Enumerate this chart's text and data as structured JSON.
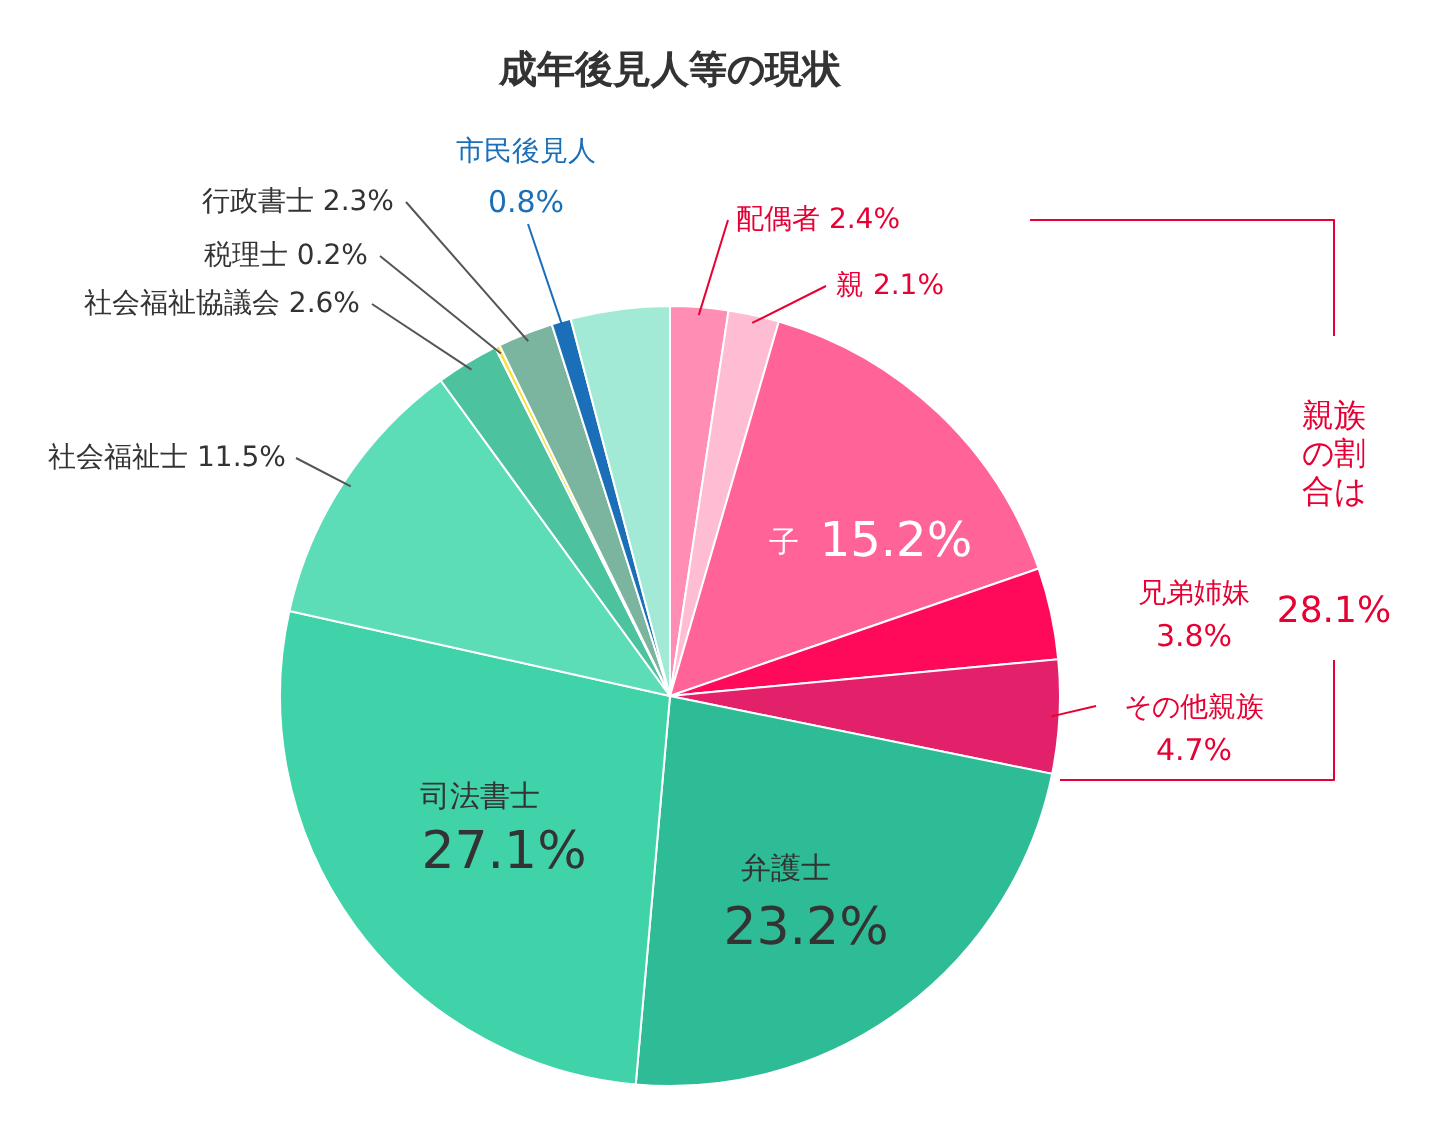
{
  "chart_data": {
    "type": "pie",
    "title": "成年後見人等の現状",
    "categories": [
      "配偶者",
      "親",
      "子",
      "兄弟姉妹",
      "その他親族",
      "弁護士",
      "司法書士",
      "社会福祉士",
      "社会福祉協議会",
      "税理士",
      "行政書士",
      "市民後見人",
      null
    ],
    "values": [
      2.4,
      2.1,
      15.2,
      3.8,
      4.7,
      23.2,
      27.1,
      11.5,
      2.6,
      0.2,
      2.3,
      0.8,
      4.1
    ],
    "value_labels": [
      "2.4%",
      "2.1%",
      "15.2%",
      "3.8%",
      "4.7%",
      "23.2%",
      "27.1%",
      "11.5%",
      "2.6%",
      "0.2%",
      "2.3%",
      "0.8%",
      null
    ],
    "colors": [
      "#ff8db4",
      "#ffbdd4",
      "#ff6397",
      "#ff0a5a",
      "#e3216a",
      "#2ebc96",
      "#40d3a9",
      "#5ddcb8",
      "#4cc29e",
      "#f5e04a",
      "#7bb5a0",
      "#1a6fb8",
      "#a3ead6"
    ],
    "annotations": [
      "親族の割合は",
      "28.1%"
    ]
  }
}
